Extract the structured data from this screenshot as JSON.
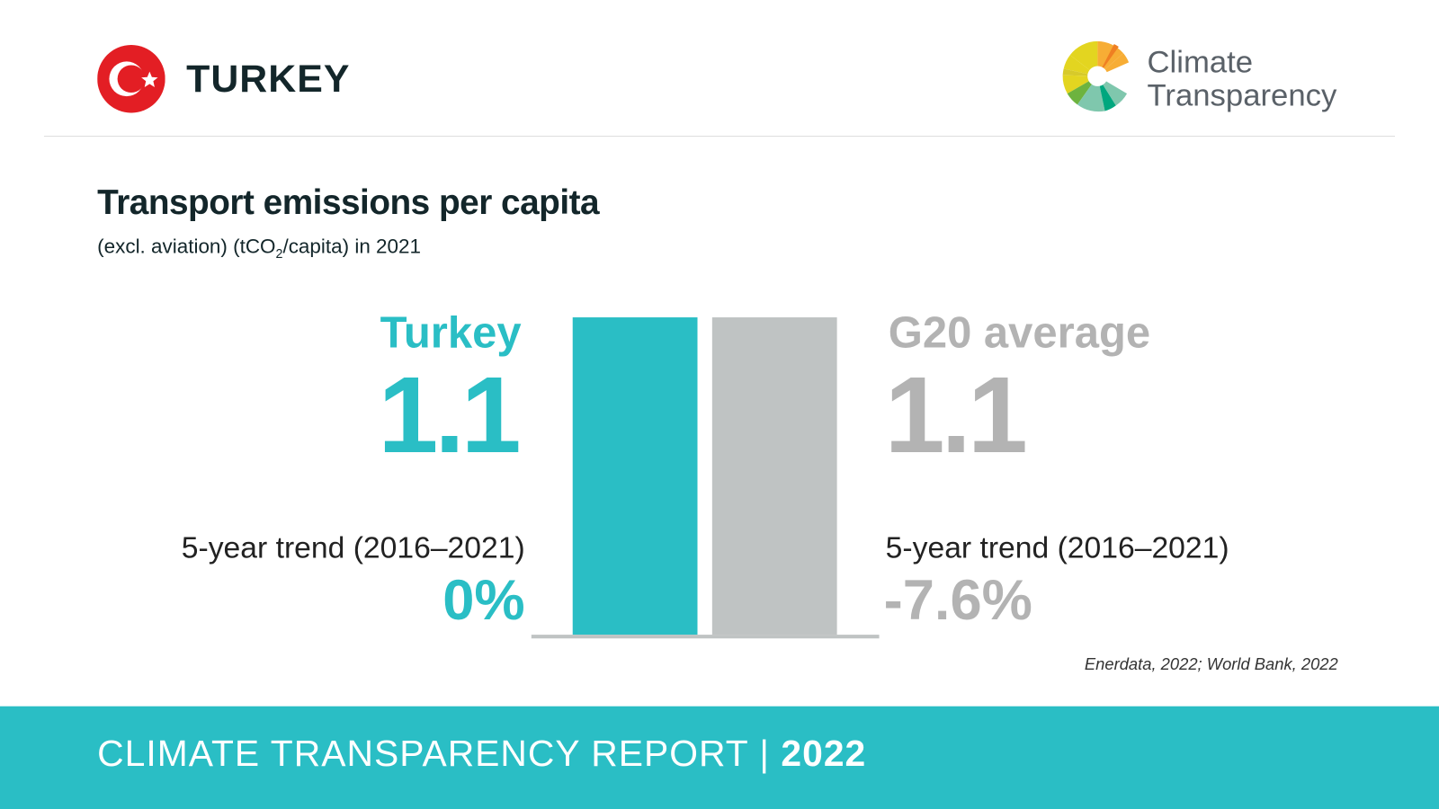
{
  "header": {
    "country": "TURKEY",
    "logo_line1": "Climate",
    "logo_line2": "Transparency"
  },
  "title": "Transport emissions per capita",
  "subtitle": {
    "pre": "(excl. aviation) (tCO",
    "sub": "2",
    "post": "/capita) in 2021"
  },
  "left": {
    "label": "Turkey",
    "value": "1.1",
    "trend_label": "5-year trend (2016–2021)",
    "trend": "0%"
  },
  "right": {
    "label": "G20 average",
    "value": "1.1",
    "trend_label": "5-year trend (2016–2021)",
    "trend": "-7.6%"
  },
  "source": "Enerdata, 2022; World Bank, 2022",
  "footer": {
    "text": "CLIMATE TRANSPARENCY REPORT",
    "sep": "|",
    "year": "2022"
  },
  "colors": {
    "turkey": "#2abec5",
    "g20": "#bfc3c3",
    "baseline": "#bfc3c3",
    "flag": "#e31e24"
  },
  "chart_data": {
    "type": "bar",
    "title": "Transport emissions per capita",
    "ylabel": "tCO2/capita (excl. aviation), 2021",
    "categories": [
      "Turkey",
      "G20 average"
    ],
    "values": [
      1.1,
      1.1
    ],
    "trend_2016_2021_pct": [
      0,
      -7.6
    ],
    "ylim": [
      0,
      1.1
    ]
  }
}
